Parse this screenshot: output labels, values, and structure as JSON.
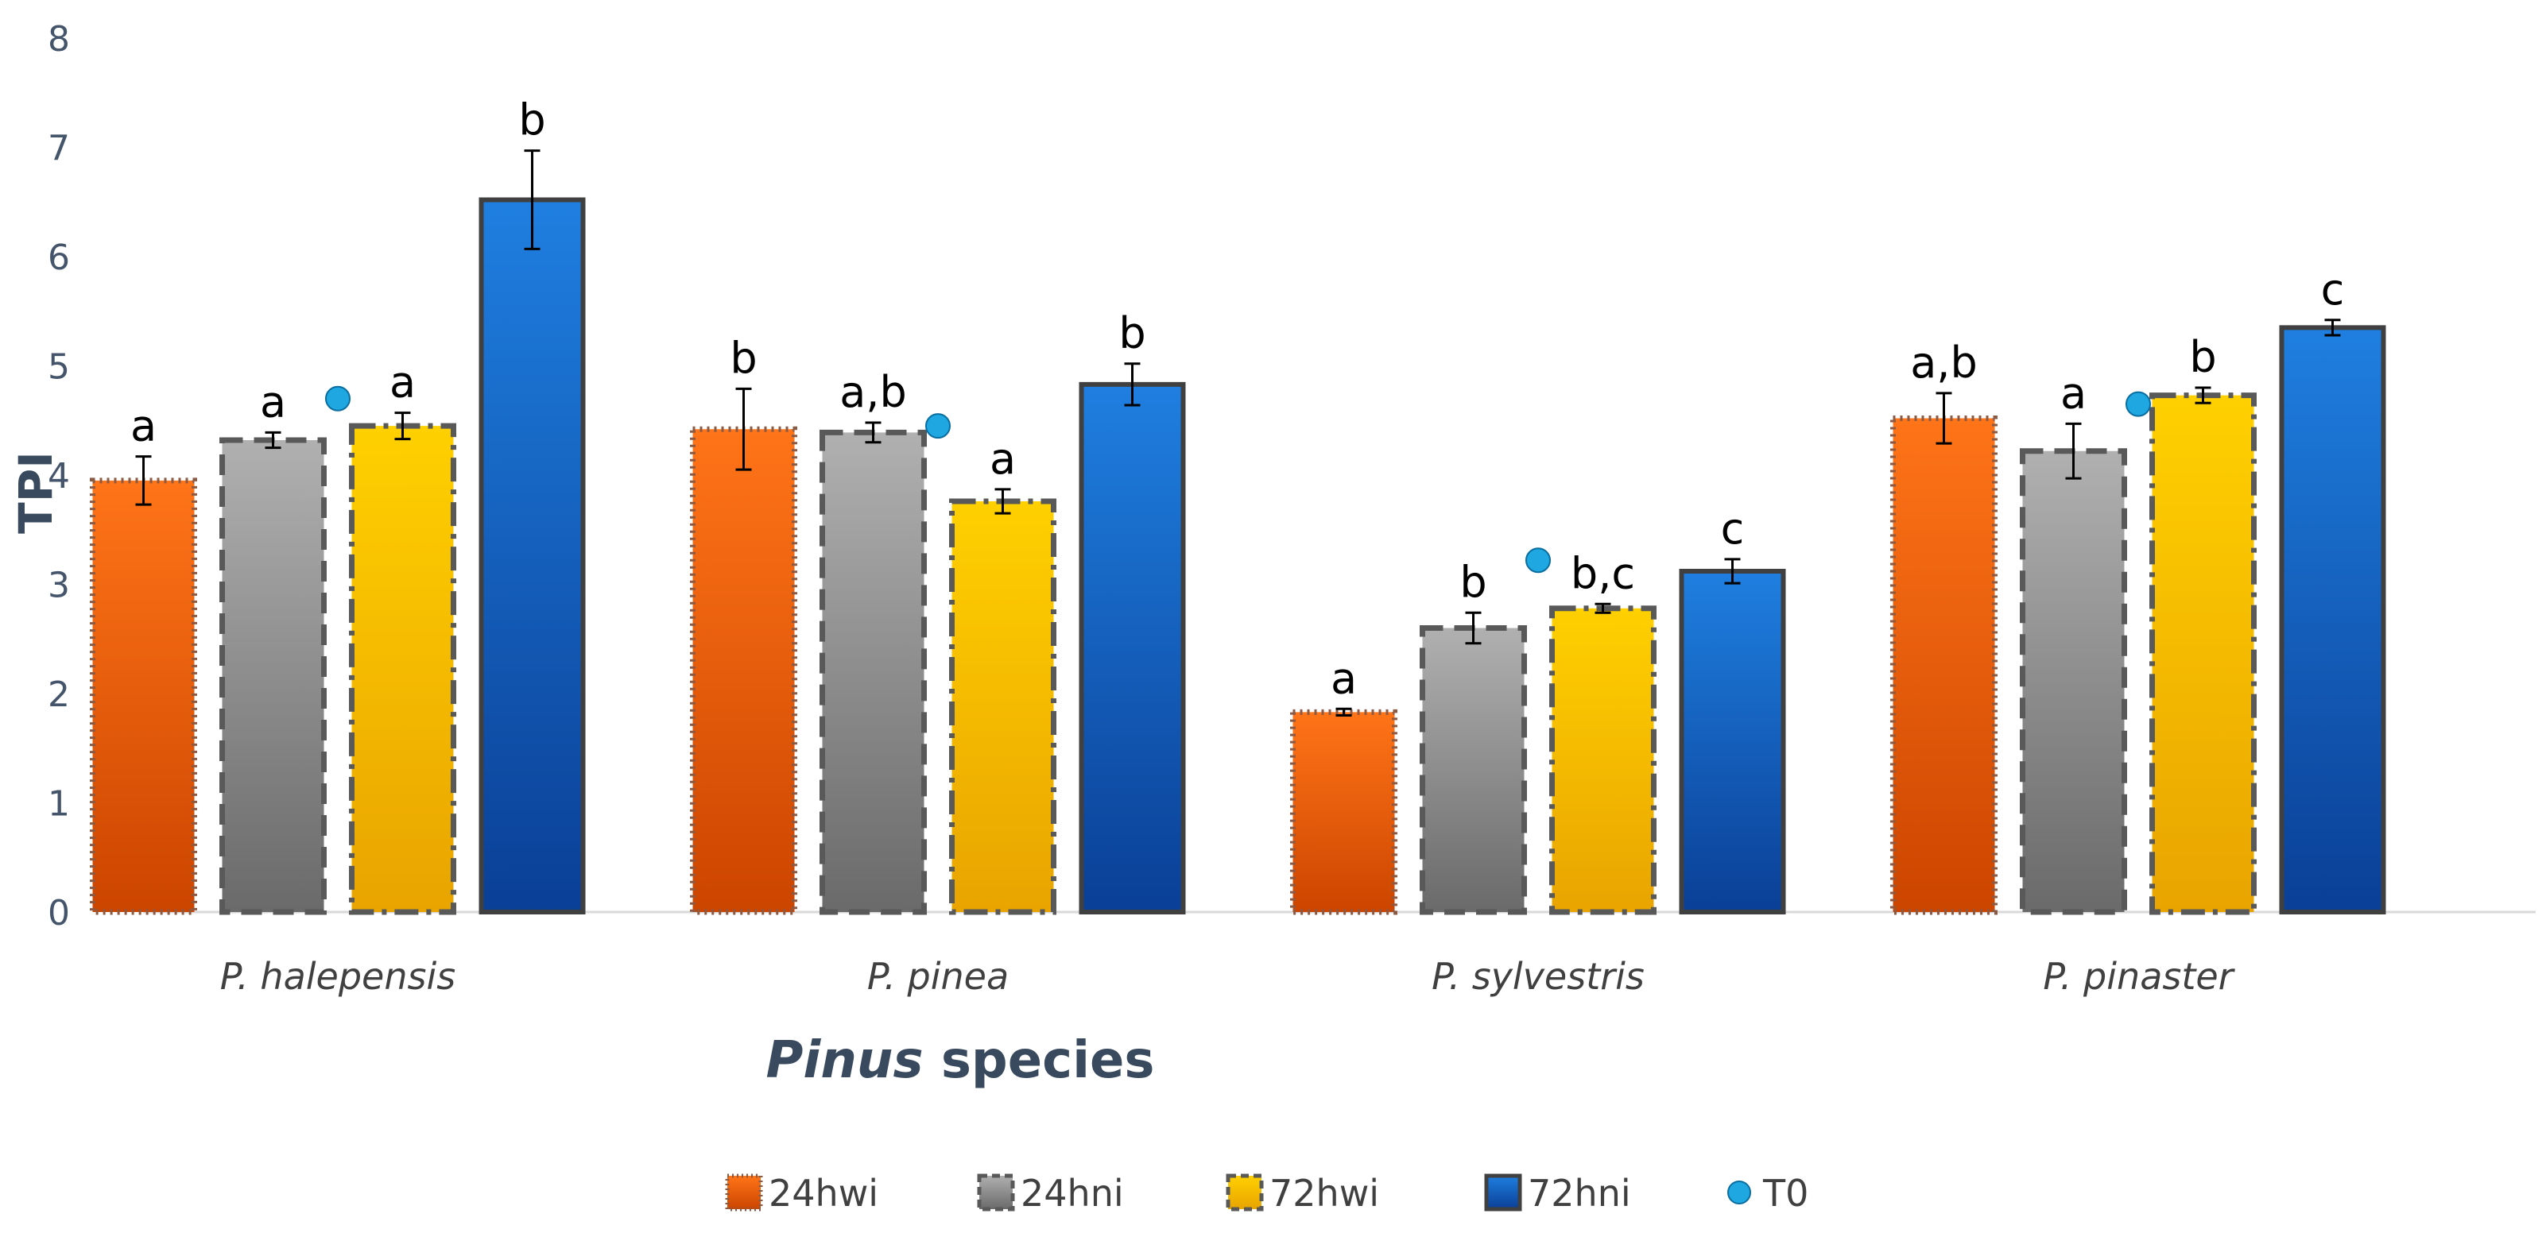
{
  "chart_data": {
    "type": "bar",
    "title": "",
    "xlabel_bold": "Pinus",
    "xlabel_rest": " species",
    "ylabel": "TPI",
    "ylim": [
      0,
      8
    ],
    "yticks": [
      "0",
      "1",
      "2",
      "3",
      "4",
      "5",
      "6",
      "7",
      "8"
    ],
    "categories": [
      "P. halepensis",
      "P. pinea",
      "P. sylvestris",
      "P. pinaster"
    ],
    "series": [
      {
        "name": "24hwi",
        "values": [
          3.95,
          4.42,
          1.83,
          4.52
        ],
        "errors": [
          0.22,
          0.37,
          0.03,
          0.23
        ],
        "sig": [
          "a",
          "b",
          "a",
          "a,b"
        ],
        "color_top": "#ff7418",
        "color_bottom": "#cc4500",
        "border": "#8a5a44",
        "dash": "dotted"
      },
      {
        "name": "24hni",
        "values": [
          4.32,
          4.39,
          2.6,
          4.22
        ],
        "errors": [
          0.07,
          0.09,
          0.14,
          0.25
        ],
        "sig": [
          "a",
          "a,b",
          "b",
          "a"
        ],
        "color_top": "#b0b0b0",
        "color_bottom": "#6a6a6a",
        "border": "#595959",
        "dash": "dashed"
      },
      {
        "name": "72hwi",
        "values": [
          4.45,
          3.76,
          2.78,
          4.73
        ],
        "errors": [
          0.12,
          0.11,
          0.04,
          0.07
        ],
        "sig": [
          "a",
          "a",
          "b,c",
          "b"
        ],
        "color_top": "#ffd000",
        "color_bottom": "#e9a400",
        "border": "#595959",
        "dash": "dashdot"
      },
      {
        "name": "72hni",
        "values": [
          6.52,
          4.83,
          3.12,
          5.35
        ],
        "errors": [
          0.45,
          0.19,
          0.11,
          0.07
        ],
        "sig": [
          "b",
          "b",
          "c",
          "c"
        ],
        "color_top": "#1f7fe0",
        "color_bottom": "#0a3f96",
        "border": "#404040",
        "dash": "solid"
      }
    ],
    "t0": {
      "name": "T0",
      "values": [
        4.7,
        4.45,
        3.22,
        4.65
      ],
      "color": "#1ea7e1"
    },
    "legend": [
      "24hwi",
      "24hni",
      "72hwi",
      "72hni",
      "T0"
    ],
    "legend_position": "bottom",
    "grid": false
  }
}
